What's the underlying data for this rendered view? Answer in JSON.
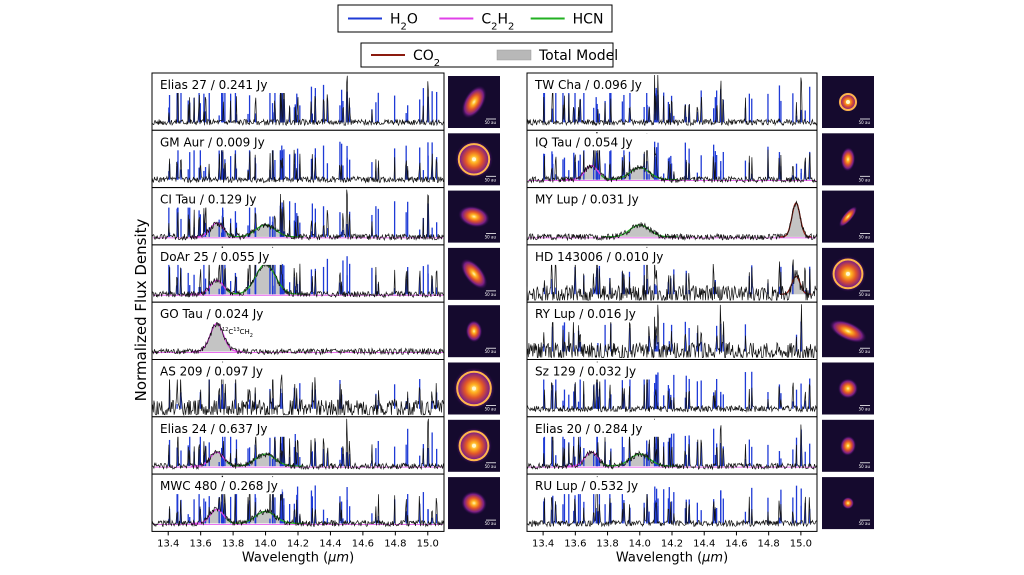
{
  "chart_data": {
    "type": "line",
    "ylabel": "Normalized Flux Density",
    "xlabel_prefix": "Wavelength (",
    "xlabel_unit": "μm",
    "xlabel_suffix": ")",
    "xlim": [
      13.3,
      15.1
    ],
    "xticks": [
      "13.4",
      "13.6",
      "13.8",
      "14.0",
      "14.2",
      "14.4",
      "14.6",
      "14.8",
      "15.0"
    ],
    "legend_row1": [
      {
        "name": "H2O",
        "base": "H",
        "sub": "2",
        "tail": "O",
        "color": "#1f3bd6",
        "kind": "line"
      },
      {
        "name": "C2H2",
        "base": "C",
        "sub": "2",
        "tail": "H",
        "sub2": "2",
        "color": "#e040e8",
        "kind": "line"
      },
      {
        "name": "HCN",
        "base": "HCN",
        "color": "#22b022",
        "kind": "line"
      }
    ],
    "legend_row2": [
      {
        "name": "CO2",
        "base": "CO",
        "sub": "2",
        "color": "#8b1a0e",
        "kind": "line"
      },
      {
        "name": "Total Model",
        "base": "Total Model",
        "color": "#b8b8b8",
        "kind": "patch"
      }
    ],
    "annotation": {
      "panel": "GO Tau",
      "sup1": "12",
      "t1": "C",
      "sup2": "13",
      "t2": "CH",
      "sub": "2"
    },
    "image_scale_label": "50 au",
    "panels": [
      {
        "column": "left",
        "label": "Elias 27 / 0.241 Jy",
        "source": "Elias 27",
        "flux_jy": 0.241,
        "features": [
          "H2O"
        ]
      },
      {
        "column": "left",
        "label": "GM Aur / 0.009 Jy",
        "source": "GM Aur",
        "flux_jy": 0.009,
        "features": [
          "H2O"
        ]
      },
      {
        "column": "left",
        "label": "CI Tau / 0.129 Jy",
        "source": "CI Tau",
        "flux_jy": 0.129,
        "features": [
          "H2O",
          "C2H2",
          "HCN"
        ]
      },
      {
        "column": "left",
        "label": "DoAr 25 / 0.055 Jy",
        "source": "DoAr 25",
        "flux_jy": 0.055,
        "features": [
          "H2O",
          "C2H2",
          "HCN"
        ]
      },
      {
        "column": "left",
        "label": "GO Tau / 0.024 Jy",
        "source": "GO Tau",
        "flux_jy": 0.024,
        "features": [
          "C2H2"
        ]
      },
      {
        "column": "left",
        "label": "AS 209 / 0.097 Jy",
        "source": "AS 209",
        "flux_jy": 0.097,
        "features": [
          "H2O"
        ]
      },
      {
        "column": "left",
        "label": "Elias 24 / 0.637 Jy",
        "source": "Elias 24",
        "flux_jy": 0.637,
        "features": [
          "H2O",
          "C2H2",
          "HCN"
        ]
      },
      {
        "column": "left",
        "label": "MWC 480 / 0.268 Jy",
        "source": "MWC 480",
        "flux_jy": 0.268,
        "features": [
          "H2O",
          "C2H2",
          "HCN"
        ]
      },
      {
        "column": "right",
        "label": "TW Cha / 0.096 Jy",
        "source": "TW Cha",
        "flux_jy": 0.096,
        "features": [
          "H2O"
        ]
      },
      {
        "column": "right",
        "label": "IQ Tau / 0.054 Jy",
        "source": "IQ Tau",
        "flux_jy": 0.054,
        "features": [
          "H2O",
          "C2H2",
          "HCN"
        ]
      },
      {
        "column": "right",
        "label": "MY Lup / 0.031 Jy",
        "source": "MY Lup",
        "flux_jy": 0.031,
        "features": [
          "HCN",
          "CO2"
        ]
      },
      {
        "column": "right",
        "label": "HD 143006 / 0.010 Jy",
        "source": "HD 143006",
        "flux_jy": 0.01,
        "features": [
          "H2O",
          "CO2"
        ]
      },
      {
        "column": "right",
        "label": "RY Lup / 0.016 Jy",
        "source": "RY Lup",
        "flux_jy": 0.016,
        "features": [
          "H2O"
        ]
      },
      {
        "column": "right",
        "label": "Sz 129 / 0.032 Jy",
        "source": "Sz 129",
        "flux_jy": 0.032,
        "features": [
          "H2O"
        ]
      },
      {
        "column": "right",
        "label": "Elias 20 / 0.284 Jy",
        "source": "Elias 20",
        "flux_jy": 0.284,
        "features": [
          "H2O",
          "C2H2",
          "HCN"
        ]
      },
      {
        "column": "right",
        "label": "RU Lup / 0.532 Jy",
        "source": "RU Lup",
        "flux_jy": 0.532,
        "features": [
          "H2O"
        ]
      }
    ]
  }
}
